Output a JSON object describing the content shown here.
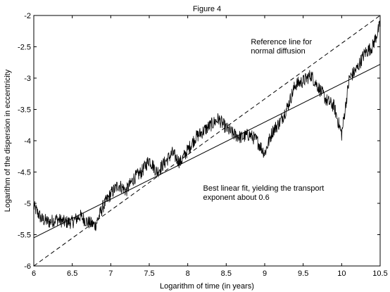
{
  "chart_data": {
    "type": "line",
    "title": "Figure 4",
    "xlabel": "Logarithm of time (in years)",
    "ylabel": "Logarithm of the dispersion in eccentricity",
    "xlim": [
      6,
      10.5
    ],
    "ylim": [
      -6,
      -2
    ],
    "xticks": [
      6,
      6.5,
      7,
      7.5,
      8,
      8.5,
      9,
      9.5,
      10,
      10.5
    ],
    "xtick_labels": [
      "6",
      "6.5",
      "7",
      "7.5",
      "8",
      "8.5",
      "9",
      "9.5",
      "10",
      "10.5"
    ],
    "yticks": [
      -6,
      -5.5,
      -5,
      -4.5,
      -4,
      -3.5,
      -3,
      -2.5,
      -2
    ],
    "ytick_labels": [
      "-6",
      "-5.5",
      "-5",
      "-4.5",
      "-4",
      "-3.5",
      "-3",
      "-2.5",
      "-2"
    ],
    "grid": false,
    "series": [
      {
        "style": "noisy-solid",
        "x": [
          6.0,
          6.1,
          6.2,
          6.3,
          6.4,
          6.5,
          6.6,
          6.7,
          6.8,
          6.9,
          7.0,
          7.1,
          7.2,
          7.3,
          7.4,
          7.5,
          7.6,
          7.7,
          7.8,
          7.9,
          8.0,
          8.1,
          8.2,
          8.3,
          8.4,
          8.5,
          8.6,
          8.7,
          8.8,
          8.9,
          9.0,
          9.1,
          9.2,
          9.3,
          9.4,
          9.5,
          9.6,
          9.7,
          9.8,
          9.9,
          10.0,
          10.1,
          10.2,
          10.3,
          10.4,
          10.5
        ],
        "y": [
          -5.05,
          -5.25,
          -5.3,
          -5.25,
          -5.3,
          -5.3,
          -5.2,
          -5.3,
          -5.35,
          -5.05,
          -4.85,
          -4.7,
          -4.8,
          -4.6,
          -4.5,
          -4.3,
          -4.5,
          -4.35,
          -4.2,
          -4.35,
          -4.15,
          -3.95,
          -3.85,
          -3.75,
          -3.65,
          -3.8,
          -3.9,
          -3.95,
          -3.9,
          -4.0,
          -4.2,
          -3.85,
          -3.7,
          -3.45,
          -3.1,
          -3.05,
          -2.95,
          -3.15,
          -3.35,
          -3.45,
          -3.9,
          -3.0,
          -2.85,
          -2.6,
          -2.5,
          -2.15
        ]
      },
      {
        "style": "solid",
        "x": [
          6.0,
          10.5
        ],
        "y": [
          -5.55,
          -2.78
        ]
      },
      {
        "style": "dashed",
        "x": [
          6.0,
          10.5
        ],
        "y": [
          -6.0,
          -2.0
        ]
      }
    ],
    "annotations": [
      {
        "line1": "Reference line for",
        "line2": "normal diffusion",
        "x": 8.82,
        "y": -2.46
      },
      {
        "line1": "Best linear fit, yielding the transport",
        "line2": "exponent about 0.6",
        "x": 8.2,
        "y": -4.8
      }
    ]
  }
}
